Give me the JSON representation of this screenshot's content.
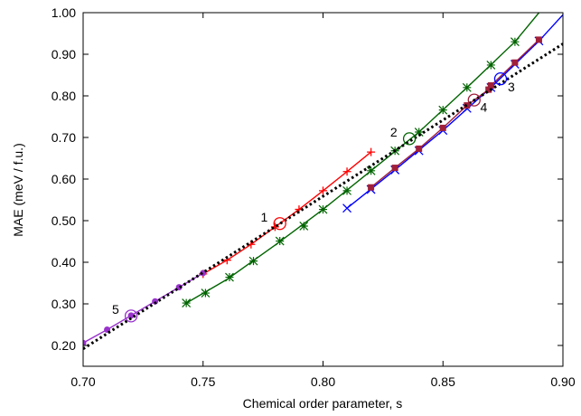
{
  "chart_data": {
    "type": "line",
    "xlabel": "Chemical order parameter, s",
    "ylabel": "MAE (meV / f.u.)",
    "xlim": [
      0.7,
      0.9
    ],
    "ylim": [
      0.15,
      1.0
    ],
    "x_ticks": [
      "0.70",
      "0.75",
      "0.80",
      "0.85",
      "0.90"
    ],
    "y_ticks": [
      "0.20",
      "0.30",
      "0.40",
      "0.50",
      "0.60",
      "0.70",
      "0.80",
      "0.90",
      "1.00"
    ],
    "grid": false,
    "legend": "none",
    "series": [
      {
        "color": "#ff0000",
        "marker": "plus",
        "x": [
          0.75,
          0.76,
          0.77,
          0.78,
          0.79,
          0.8,
          0.81,
          0.82
        ],
        "y": [
          0.372,
          0.405,
          0.443,
          0.485,
          0.527,
          0.572,
          0.618,
          0.665
        ]
      },
      {
        "color": "#006400",
        "marker": "asterisk",
        "x": [
          0.743,
          0.751,
          0.761,
          0.771,
          0.782,
          0.792,
          0.8,
          0.81,
          0.82,
          0.83,
          0.84,
          0.85,
          0.86,
          0.87,
          0.88
        ],
        "y": [
          0.302,
          0.326,
          0.364,
          0.403,
          0.451,
          0.487,
          0.527,
          0.572,
          0.62,
          0.668,
          0.713,
          0.766,
          0.82,
          0.874,
          0.93
        ],
        "curve_x": [
          0.743,
          0.76,
          0.78,
          0.8,
          0.82,
          0.84,
          0.86,
          0.88,
          0.89
        ],
        "curve_y": [
          0.302,
          0.359,
          0.441,
          0.527,
          0.62,
          0.713,
          0.82,
          0.93,
          1.0
        ]
      },
      {
        "color": "#0000ff",
        "marker": "x",
        "x": [
          0.81,
          0.82,
          0.83,
          0.84,
          0.85,
          0.86,
          0.87,
          0.88,
          0.89
        ],
        "y": [
          0.53,
          0.575,
          0.622,
          0.668,
          0.717,
          0.77,
          0.82,
          0.876,
          0.932
        ],
        "curve_x": [
          0.81,
          0.83,
          0.85,
          0.87,
          0.89,
          0.9
        ],
        "curve_y": [
          0.53,
          0.622,
          0.717,
          0.82,
          0.932,
          0.995
        ]
      },
      {
        "color": "#a0203a",
        "marker": "square",
        "x": [
          0.82,
          0.83,
          0.84,
          0.85,
          0.86,
          0.869,
          0.87,
          0.88,
          0.89
        ],
        "y": [
          0.58,
          0.627,
          0.673,
          0.723,
          0.777,
          0.815,
          0.825,
          0.88,
          0.935
        ]
      },
      {
        "color": "#9933cc",
        "marker": "dot",
        "x": [
          0.7,
          0.71,
          0.72,
          0.73,
          0.74,
          0.75
        ],
        "y": [
          0.206,
          0.238,
          0.272,
          0.306,
          0.34,
          0.374
        ]
      },
      {
        "color": "#000000",
        "style": "dotted-fit",
        "x": [
          0.7,
          0.9
        ],
        "y": [
          0.192,
          0.925
        ]
      }
    ],
    "annotations": [
      {
        "text": "1",
        "x": 0.782,
        "y": 0.493,
        "circle_color": "#ff0000",
        "label_dx": -0.0065,
        "label_dy": 0.005
      },
      {
        "text": "2",
        "x": 0.836,
        "y": 0.697,
        "circle_color": "#006400",
        "label_dx": -0.0065,
        "label_dy": 0.005
      },
      {
        "text": "3",
        "x": 0.874,
        "y": 0.841,
        "circle_color": "#0000ff",
        "label_dx": 0.0045,
        "label_dy": -0.03
      },
      {
        "text": "4",
        "x": 0.863,
        "y": 0.79,
        "circle_color": "#a0203a",
        "label_dx": 0.004,
        "label_dy": -0.028
      },
      {
        "text": "5",
        "x": 0.72,
        "y": 0.271,
        "circle_color": "#9933cc",
        "label_dx": -0.0065,
        "label_dy": 0.005
      }
    ]
  }
}
